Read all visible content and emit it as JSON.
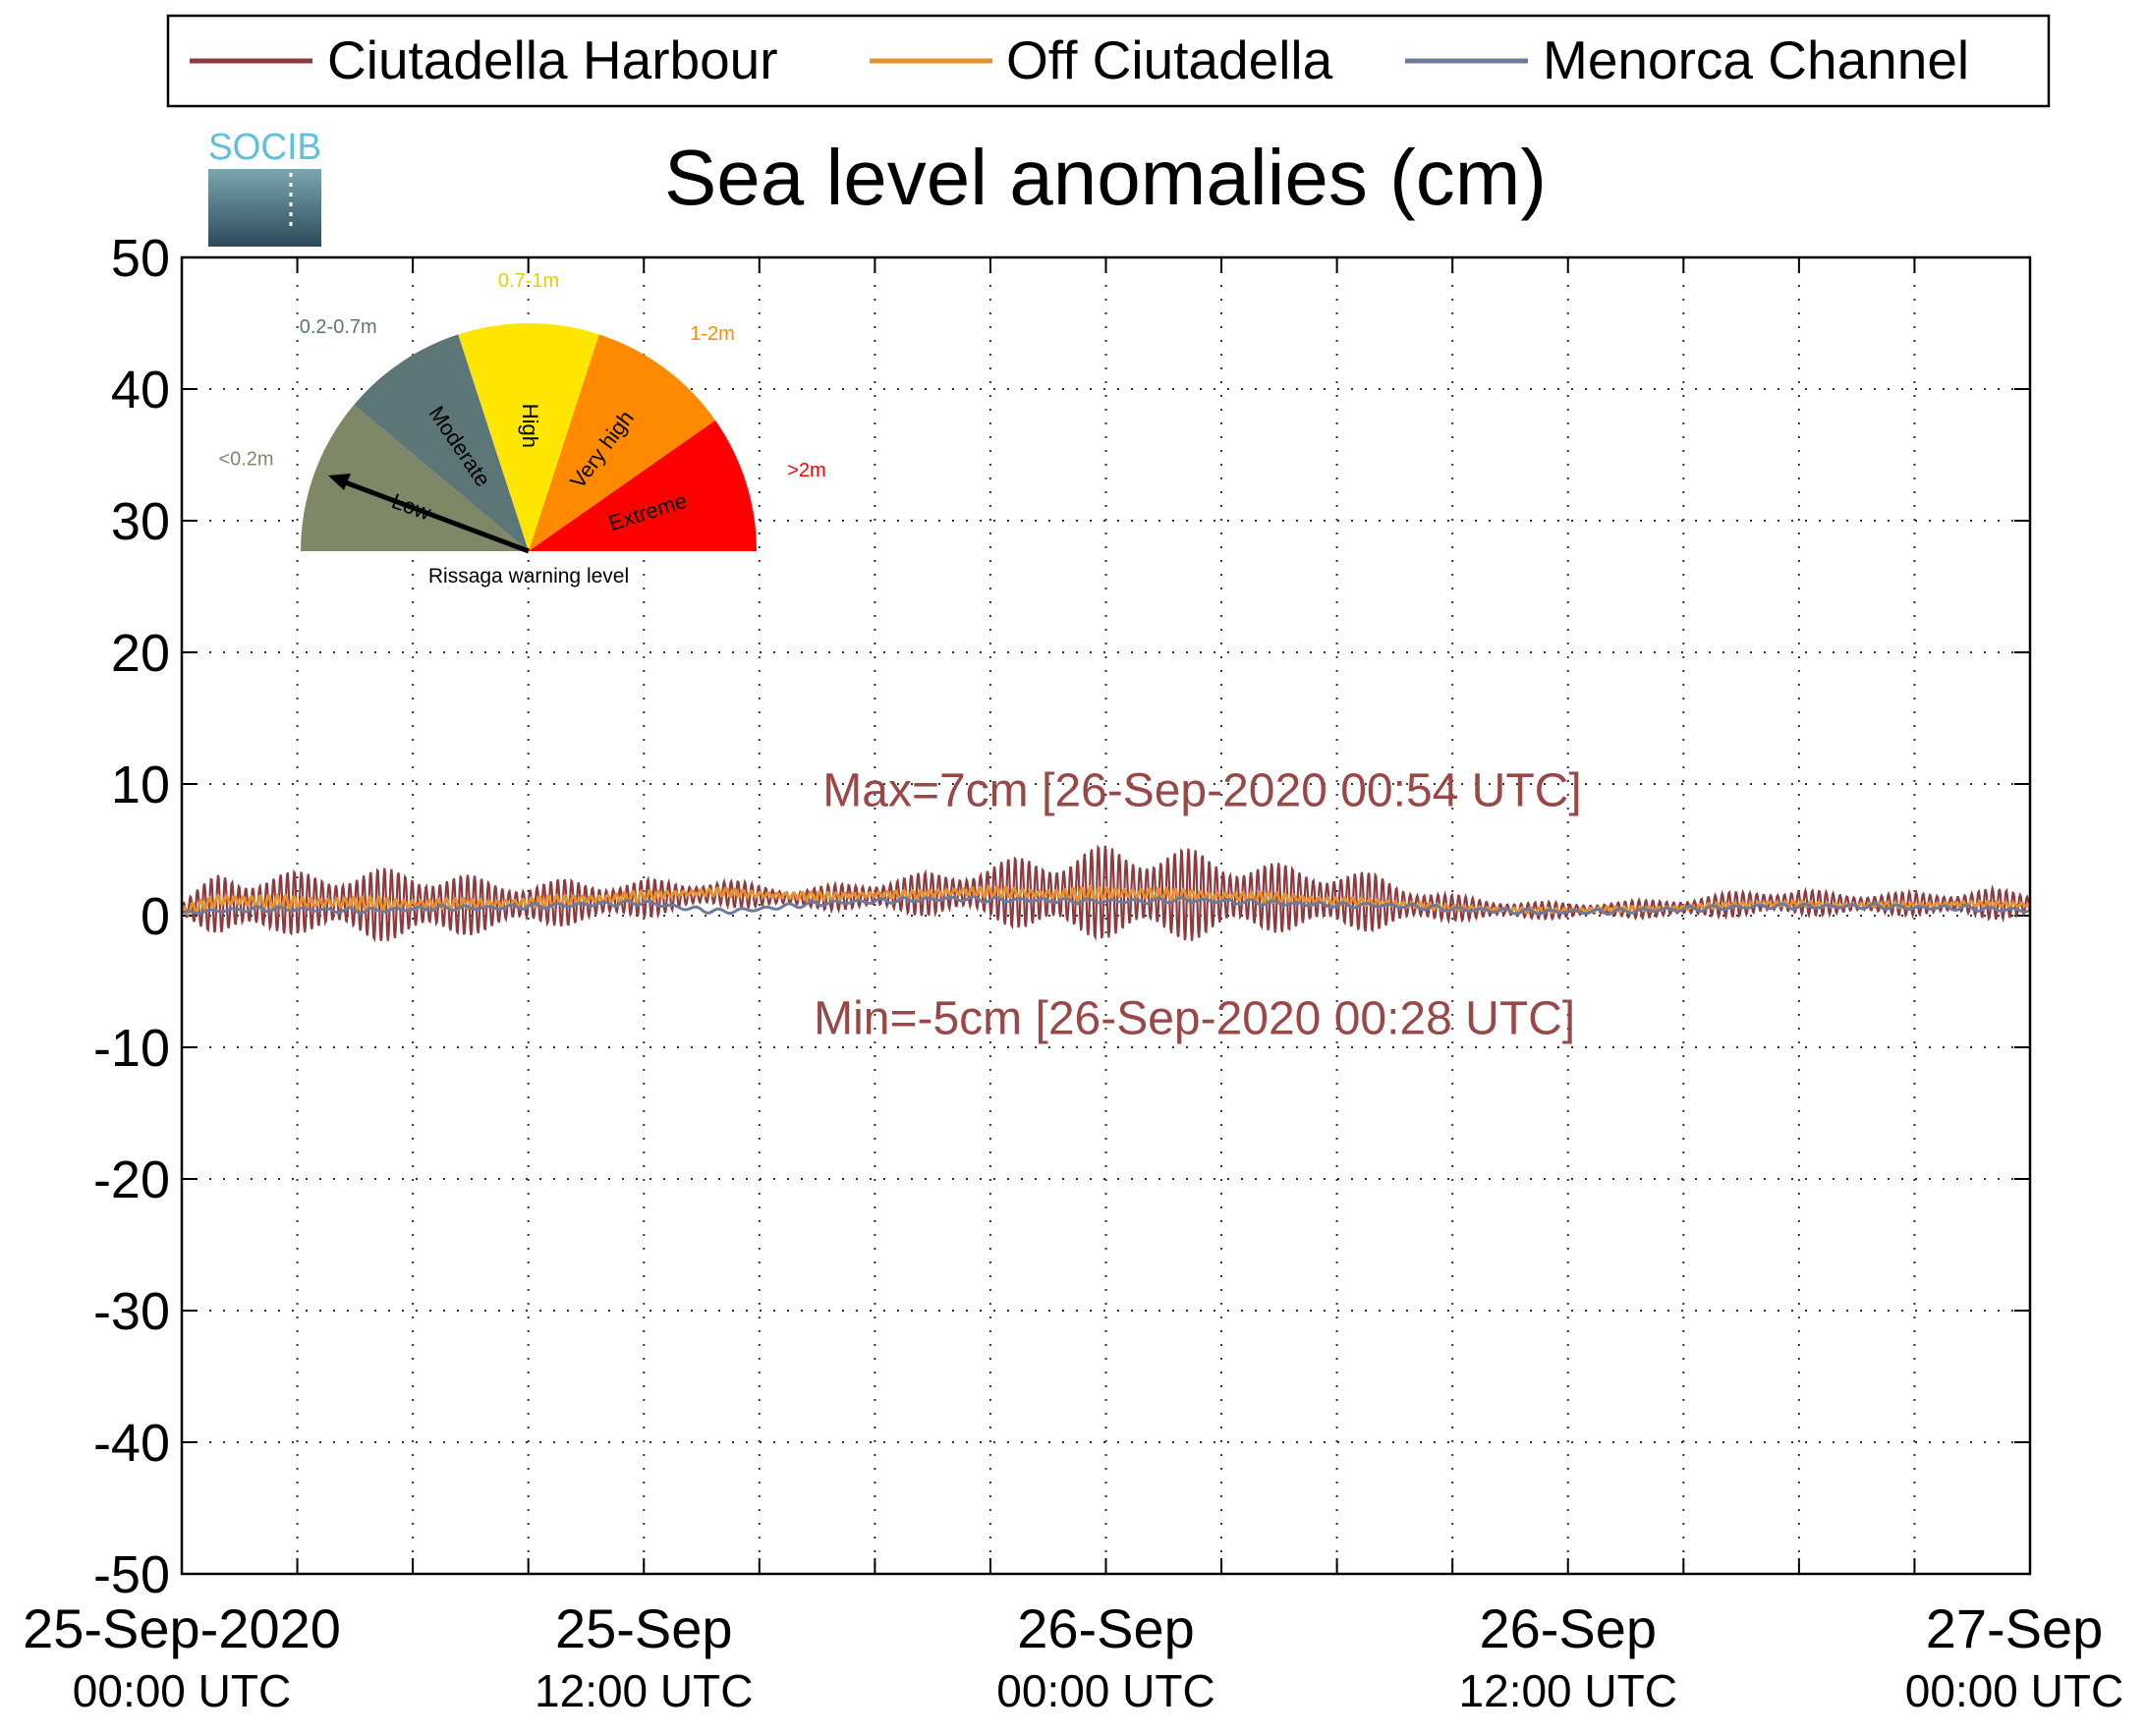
{
  "logo": {
    "text": "SOCIB"
  },
  "colors": {
    "ciutadella_harbour": "#8f3a3f",
    "off_ciutadella": "#e8902b",
    "menorca_channel": "#6c7a9c",
    "annotation": "#9a4747",
    "gauge_low": "#7f8866",
    "gauge_moderate": "#5c7678",
    "gauge_high": "#ffe600",
    "gauge_very_high": "#ff8a00",
    "gauge_extreme": "#ff0000",
    "label_low": "#7f8866",
    "label_moderate": "#5c7678",
    "label_high": "#e6cf00",
    "label_very_high": "#ff8a00",
    "label_extreme": "#ff0000"
  },
  "gauge": {
    "caption": "Rissaga warning level",
    "current_level": "Low",
    "sectors": [
      {
        "name": "Low",
        "range": "<0.2m",
        "color_key": "gauge_low",
        "label_color_key": "label_low"
      },
      {
        "name": "Moderate",
        "range": "0.2-0.7m",
        "color_key": "gauge_moderate",
        "label_color_key": "label_moderate"
      },
      {
        "name": "High",
        "range": "0.7-1m",
        "color_key": "gauge_high",
        "label_color_key": "label_high"
      },
      {
        "name": "Very high",
        "range": "1-2m",
        "color_key": "gauge_very_high",
        "label_color_key": "label_very_high"
      },
      {
        "name": "Extreme",
        "range": ">2m",
        "color_key": "gauge_extreme",
        "label_color_key": "label_extreme"
      }
    ]
  },
  "chart_data": {
    "type": "line",
    "title": "Sea level anomalies (cm)",
    "xlabel": "",
    "ylabel": "",
    "ylim": [
      -50,
      50
    ],
    "yticks": [
      -50,
      -40,
      -30,
      -20,
      -10,
      0,
      10,
      20,
      30,
      40,
      50
    ],
    "xlim_hours": [
      0,
      48
    ],
    "x_gridlines_hours": [
      3,
      6,
      9,
      12,
      15,
      18,
      21,
      24,
      27,
      30,
      33,
      36,
      39,
      42,
      45
    ],
    "grid": true,
    "legend_position": "top",
    "xtick_labels": [
      {
        "hour": 0,
        "line1": "25-Sep-2020",
        "line2": "00:00 UTC"
      },
      {
        "hour": 12,
        "line1": "25-Sep",
        "line2": "12:00 UTC"
      },
      {
        "hour": 24,
        "line1": "26-Sep",
        "line2": "00:00 UTC"
      },
      {
        "hour": 36,
        "line1": "26-Sep",
        "line2": "12:00 UTC"
      },
      {
        "hour": 48,
        "line1": "27-Sep",
        "line2": "00:00 UTC"
      }
    ],
    "annotations": [
      {
        "text": "Max=7cm [26-Sep-2020 00:54 UTC]",
        "hour": 26.5,
        "y": 9.5
      },
      {
        "text": "Min=-5cm [26-Sep-2020 00:28 UTC]",
        "hour": 26.3,
        "y": -7.8
      }
    ],
    "x_hours": [
      0,
      1,
      2,
      3,
      4,
      5,
      6,
      7,
      8,
      9,
      10,
      11,
      12,
      13,
      14,
      15,
      16,
      17,
      18,
      19,
      20,
      21,
      22,
      23,
      24,
      25,
      26,
      27,
      28,
      29,
      30,
      31,
      32,
      33,
      34,
      35,
      36,
      37,
      38,
      39,
      40,
      41,
      42,
      43,
      44,
      45,
      46,
      47,
      48
    ],
    "series": [
      {
        "name": "Ciutadella Harbour",
        "color_key": "ciutadella_harbour",
        "values": [
          0.5,
          0.9,
          0.8,
          1.0,
          1.0,
          0.8,
          0.9,
          0.8,
          0.8,
          0.9,
          1.0,
          1.1,
          1.3,
          1.5,
          1.7,
          1.5,
          1.3,
          1.4,
          1.5,
          1.6,
          1.7,
          1.8,
          1.7,
          1.6,
          1.8,
          1.7,
          1.6,
          1.5,
          1.4,
          1.3,
          1.2,
          1.0,
          0.8,
          0.6,
          0.5,
          0.4,
          0.4,
          0.5,
          0.5,
          0.6,
          0.8,
          1.0,
          1.0,
          0.9,
          0.9,
          0.9,
          0.9,
          0.9,
          0.8
        ],
        "amplitude": [
          0.5,
          2.6,
          2.5,
          2.4,
          2.6,
          2.8,
          2.8,
          2.6,
          2.0,
          1.8,
          1.8,
          1.6,
          1.5,
          1.2,
          1.1,
          0.9,
          0.8,
          1.0,
          1.3,
          1.6,
          1.8,
          2.2,
          3.0,
          3.4,
          3.6,
          3.8,
          3.6,
          3.2,
          2.8,
          2.5,
          2.5,
          2.2,
          1.5,
          1.0,
          0.8,
          0.7,
          0.6,
          0.6,
          0.7,
          0.8,
          0.9,
          1.1,
          1.0,
          0.9,
          0.9,
          0.9,
          1.0,
          1.2,
          1.0
        ]
      },
      {
        "name": "Off Ciutadella",
        "color_key": "off_ciutadella",
        "values": [
          0.3,
          1.2,
          1.1,
          1.0,
          1.0,
          0.9,
          0.9,
          0.9,
          0.9,
          1.0,
          1.2,
          1.3,
          1.5,
          1.7,
          1.8,
          1.6,
          1.5,
          1.5,
          1.6,
          1.6,
          1.8,
          1.8,
          1.7,
          1.6,
          1.7,
          1.7,
          1.6,
          1.5,
          1.4,
          1.3,
          1.1,
          1.0,
          0.8,
          0.6,
          0.5,
          0.4,
          0.4,
          0.5,
          0.5,
          0.6,
          0.8,
          0.9,
          0.9,
          0.8,
          0.8,
          0.8,
          0.9,
          0.9,
          0.8
        ],
        "amplitude": [
          0.3,
          0.6,
          0.5,
          0.5,
          0.5,
          0.5,
          0.5,
          0.4,
          0.4,
          0.4,
          0.4,
          0.4,
          0.4,
          0.3,
          0.3,
          0.3,
          0.3,
          0.3,
          0.3,
          0.3,
          0.4,
          0.4,
          0.4,
          0.5,
          0.5,
          0.5,
          0.4,
          0.4,
          0.4,
          0.4,
          0.3,
          0.3,
          0.3,
          0.2,
          0.2,
          0.2,
          0.2,
          0.2,
          0.2,
          0.2,
          0.2,
          0.2,
          0.2,
          0.2,
          0.2,
          0.2,
          0.2,
          0.2,
          0.2
        ]
      },
      {
        "name": "Menorca Channel",
        "color_key": "menorca_channel",
        "values": [
          0.2,
          0.4,
          0.5,
          0.5,
          0.4,
          0.4,
          0.5,
          0.6,
          0.6,
          0.7,
          0.8,
          0.9,
          1.0,
          0.6,
          0.3,
          0.5,
          0.8,
          1.0,
          1.1,
          1.2,
          1.3,
          1.2,
          1.2,
          1.1,
          1.1,
          1.1,
          1.2,
          1.1,
          1.0,
          0.9,
          0.8,
          0.8,
          0.7,
          0.5,
          0.4,
          0.3,
          0.3,
          0.3,
          0.4,
          0.5,
          0.6,
          0.7,
          0.7,
          0.7,
          0.7,
          0.6,
          0.6,
          0.5,
          0.4
        ],
        "amplitude": [
          0.1,
          0.2,
          0.2,
          0.2,
          0.2,
          0.2,
          0.2,
          0.2,
          0.2,
          0.2,
          0.2,
          0.2,
          0.2,
          0.2,
          0.2,
          0.2,
          0.2,
          0.2,
          0.2,
          0.2,
          0.2,
          0.2,
          0.2,
          0.2,
          0.2,
          0.2,
          0.2,
          0.2,
          0.2,
          0.2,
          0.2,
          0.2,
          0.2,
          0.2,
          0.2,
          0.2,
          0.2,
          0.2,
          0.2,
          0.2,
          0.2,
          0.2,
          0.2,
          0.2,
          0.2,
          0.2,
          0.2,
          0.2,
          0.2
        ]
      }
    ]
  }
}
